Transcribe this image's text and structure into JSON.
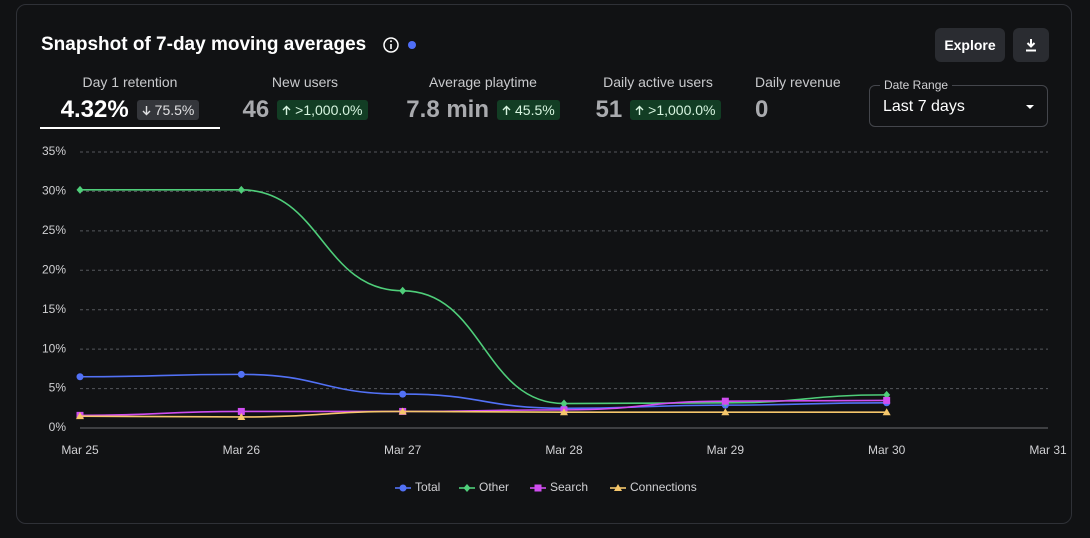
{
  "header": {
    "title": "Snapshot of 7-day moving averages",
    "explore_button": "Explore"
  },
  "metrics": [
    {
      "label": "Day 1 retention",
      "value": "4.32%",
      "change": "75.5%",
      "direction": "down"
    },
    {
      "label": "New users",
      "value": "46",
      "change": ">1,000.0%",
      "direction": "up"
    },
    {
      "label": "Average playtime",
      "value": "7.8 min",
      "change": "45.5%",
      "direction": "up"
    },
    {
      "label": "Daily active users",
      "value": "51",
      "change": ">1,000.0%",
      "direction": "up"
    },
    {
      "label": "Daily revenue",
      "value": "0"
    }
  ],
  "date_range": {
    "label": "Date Range",
    "value": "Last 7 days"
  },
  "chart_data": {
    "type": "line",
    "categories": [
      "Mar 25",
      "Mar 26",
      "Mar 27",
      "Mar 28",
      "Mar 29",
      "Mar 30",
      "Mar 31"
    ],
    "series": [
      {
        "name": "Total",
        "color": "#5271f6",
        "marker": "circle",
        "values": [
          6.5,
          6.8,
          4.3,
          2.5,
          2.9,
          3.2,
          null
        ]
      },
      {
        "name": "Other",
        "color": "#4fce7a",
        "marker": "diamond",
        "values": [
          30.2,
          30.2,
          17.4,
          3.1,
          3.2,
          4.2,
          null
        ]
      },
      {
        "name": "Search",
        "color": "#d04df0",
        "marker": "square",
        "values": [
          1.6,
          2.1,
          2.1,
          2.3,
          3.4,
          3.5,
          null
        ]
      },
      {
        "name": "Connections",
        "color": "#f5c66b",
        "marker": "triangle",
        "values": [
          1.5,
          1.4,
          2.1,
          2.0,
          2.0,
          2.0,
          null
        ]
      }
    ],
    "ylim": [
      0,
      35
    ],
    "yticks": [
      {
        "value": 0,
        "label": "0%"
      },
      {
        "value": 5,
        "label": "5%"
      },
      {
        "value": 10,
        "label": "10%"
      },
      {
        "value": 15,
        "label": "15%"
      },
      {
        "value": 20,
        "label": "20%"
      },
      {
        "value": 25,
        "label": "25%"
      },
      {
        "value": 30,
        "label": "30%"
      },
      {
        "value": 35,
        "label": "35%"
      }
    ],
    "grid": true,
    "legend": "bottom"
  }
}
